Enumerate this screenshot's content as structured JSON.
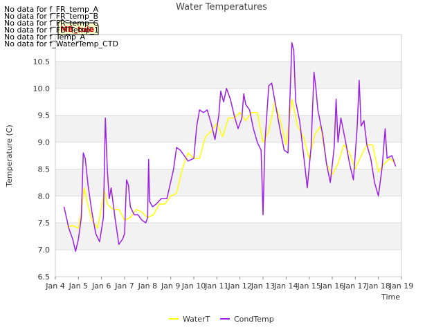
{
  "chart_data": {
    "type": "line",
    "title": "Water Temperatures",
    "xlabel": "Time",
    "ylabel": "Temperature (C)",
    "ylim": [
      6.5,
      11.0
    ],
    "xlim": [
      "2023-01-04",
      "2023-01-19"
    ],
    "x_ticks": [
      "Jan 4",
      "Jan 5",
      "Jan 6",
      "Jan 7",
      "Jan 8",
      "Jan 9",
      "Jan 10",
      "Jan 11",
      "Jan 12",
      "Jan 13",
      "Jan 14",
      "Jan 15",
      "Jan 16",
      "Jan 17",
      "Jan 18",
      "Jan 19"
    ],
    "y_ticks": [
      "6.5",
      "7.0",
      "7.5",
      "8.0",
      "8.5",
      "9.0",
      "9.5",
      "10.0",
      "10.5"
    ],
    "grid": true,
    "background_bands": true,
    "legend_position": "bottom-center",
    "no_data_messages": [
      "No data for f_FR_temp_A",
      "No data for f_FR_temp_B",
      "No data for f_FR_temp_C",
      "No data for f_FD_Temp_1",
      "No data for f_Temp_A",
      "No data for f_WaterTemp_CTD"
    ],
    "tooltip_label": "MB_tule",
    "series": [
      {
        "name": "WaterT",
        "color": "#ffff00",
        "points": [
          [
            "2023-01-04T12:00",
            7.42
          ],
          [
            "2023-01-04T18:00",
            7.45
          ],
          [
            "2023-01-05T00:00",
            7.4
          ],
          [
            "2023-01-05T03:00",
            7.7
          ],
          [
            "2023-01-05T06:00",
            8.15
          ],
          [
            "2023-01-05T09:00",
            7.9
          ],
          [
            "2023-01-05T14:00",
            7.55
          ],
          [
            "2023-01-05T20:00",
            7.4
          ],
          [
            "2023-01-06T00:00",
            7.8
          ],
          [
            "2023-01-06T03:00",
            8.1
          ],
          [
            "2023-01-06T06:00",
            7.85
          ],
          [
            "2023-01-06T12:00",
            7.75
          ],
          [
            "2023-01-06T18:00",
            7.75
          ],
          [
            "2023-01-07T00:00",
            7.55
          ],
          [
            "2023-01-07T06:00",
            7.6
          ],
          [
            "2023-01-07T12:00",
            7.75
          ],
          [
            "2023-01-07T18:00",
            7.7
          ],
          [
            "2023-01-08T00:00",
            7.6
          ],
          [
            "2023-01-08T06:00",
            7.65
          ],
          [
            "2023-01-08T12:00",
            7.85
          ],
          [
            "2023-01-08T18:00",
            7.85
          ],
          [
            "2023-01-09T00:00",
            8.0
          ],
          [
            "2023-01-09T06:00",
            8.05
          ],
          [
            "2023-01-09T12:00",
            8.5
          ],
          [
            "2023-01-09T18:00",
            8.8
          ],
          [
            "2023-01-10T00:00",
            8.7
          ],
          [
            "2023-01-10T06:00",
            8.7
          ],
          [
            "2023-01-10T12:00",
            9.1
          ],
          [
            "2023-01-10T18:00",
            9.2
          ],
          [
            "2023-01-11T00:00",
            9.35
          ],
          [
            "2023-01-11T06:00",
            9.1
          ],
          [
            "2023-01-11T12:00",
            9.45
          ],
          [
            "2023-01-11T18:00",
            9.45
          ],
          [
            "2023-01-12T00:00",
            9.55
          ],
          [
            "2023-01-12T06:00",
            9.4
          ],
          [
            "2023-01-12T12:00",
            9.55
          ],
          [
            "2023-01-12T18:00",
            9.55
          ],
          [
            "2023-01-13T00:00",
            9.0
          ],
          [
            "2023-01-13T06:00",
            9.2
          ],
          [
            "2023-01-13T12:00",
            9.75
          ],
          [
            "2023-01-13T18:00",
            9.4
          ],
          [
            "2023-01-14T00:00",
            8.95
          ],
          [
            "2023-01-14T06:00",
            9.8
          ],
          [
            "2023-01-14T12:00",
            9.3
          ],
          [
            "2023-01-14T18:00",
            9.1
          ],
          [
            "2023-01-15T00:00",
            8.7
          ],
          [
            "2023-01-15T06:00",
            9.15
          ],
          [
            "2023-01-15T12:00",
            9.3
          ],
          [
            "2023-01-15T18:00",
            8.6
          ],
          [
            "2023-01-16T00:00",
            8.4
          ],
          [
            "2023-01-16T06:00",
            8.6
          ],
          [
            "2023-01-16T12:00",
            8.95
          ],
          [
            "2023-01-16T18:00",
            8.8
          ],
          [
            "2023-01-17T00:00",
            8.5
          ],
          [
            "2023-01-17T06:00",
            8.75
          ],
          [
            "2023-01-17T12:00",
            8.95
          ],
          [
            "2023-01-17T18:00",
            8.95
          ],
          [
            "2023-01-18T00:00",
            8.45
          ],
          [
            "2023-01-18T06:00",
            8.6
          ],
          [
            "2023-01-18T12:00",
            8.7
          ],
          [
            "2023-01-18T18:00",
            8.6
          ]
        ]
      },
      {
        "name": "CondTemp",
        "color": "#9b1fe8",
        "points": [
          [
            "2023-01-04T09:00",
            7.8
          ],
          [
            "2023-01-04T14:00",
            7.4
          ],
          [
            "2023-01-04T18:00",
            7.2
          ],
          [
            "2023-01-04T21:00",
            6.97
          ],
          [
            "2023-01-05T00:00",
            7.2
          ],
          [
            "2023-01-05T03:00",
            7.6
          ],
          [
            "2023-01-05T05:00",
            8.8
          ],
          [
            "2023-01-05T07:00",
            8.7
          ],
          [
            "2023-01-05T10:00",
            8.2
          ],
          [
            "2023-01-05T14:00",
            7.7
          ],
          [
            "2023-01-05T18:00",
            7.3
          ],
          [
            "2023-01-05T22:00",
            7.15
          ],
          [
            "2023-01-06T02:00",
            7.6
          ],
          [
            "2023-01-06T04:00",
            9.45
          ],
          [
            "2023-01-06T06:00",
            8.5
          ],
          [
            "2023-01-06T08:00",
            7.95
          ],
          [
            "2023-01-06T10:00",
            8.15
          ],
          [
            "2023-01-06T14:00",
            7.6
          ],
          [
            "2023-01-06T18:00",
            7.1
          ],
          [
            "2023-01-06T22:00",
            7.2
          ],
          [
            "2023-01-07T00:00",
            7.3
          ],
          [
            "2023-01-07T02:00",
            8.3
          ],
          [
            "2023-01-07T04:00",
            8.2
          ],
          [
            "2023-01-07T06:00",
            7.8
          ],
          [
            "2023-01-07T10:00",
            7.65
          ],
          [
            "2023-01-07T14:00",
            7.65
          ],
          [
            "2023-01-07T18:00",
            7.55
          ],
          [
            "2023-01-07T22:00",
            7.5
          ],
          [
            "2023-01-08T00:00",
            7.6
          ],
          [
            "2023-01-08T01:00",
            8.68
          ],
          [
            "2023-01-08T02:00",
            7.9
          ],
          [
            "2023-01-08T05:00",
            7.8
          ],
          [
            "2023-01-08T09:00",
            7.85
          ],
          [
            "2023-01-08T14:00",
            7.95
          ],
          [
            "2023-01-08T20:00",
            7.95
          ],
          [
            "2023-01-09T03:00",
            8.5
          ],
          [
            "2023-01-09T06:00",
            8.9
          ],
          [
            "2023-01-09T10:00",
            8.85
          ],
          [
            "2023-01-09T14:00",
            8.75
          ],
          [
            "2023-01-09T18:00",
            8.65
          ],
          [
            "2023-01-10T00:00",
            8.7
          ],
          [
            "2023-01-10T03:00",
            9.3
          ],
          [
            "2023-01-10T06:00",
            9.6
          ],
          [
            "2023-01-10T10:00",
            9.55
          ],
          [
            "2023-01-10T14:00",
            9.6
          ],
          [
            "2023-01-10T18:00",
            9.35
          ],
          [
            "2023-01-10T22:00",
            9.05
          ],
          [
            "2023-01-11T02:00",
            9.5
          ],
          [
            "2023-01-11T04:00",
            9.95
          ],
          [
            "2023-01-11T07:00",
            9.75
          ],
          [
            "2023-01-11T10:00",
            10.0
          ],
          [
            "2023-01-11T14:00",
            9.8
          ],
          [
            "2023-01-11T18:00",
            9.5
          ],
          [
            "2023-01-11T22:00",
            9.25
          ],
          [
            "2023-01-12T02:00",
            9.45
          ],
          [
            "2023-01-12T04:00",
            9.9
          ],
          [
            "2023-01-12T06:00",
            9.7
          ],
          [
            "2023-01-12T10:00",
            9.6
          ],
          [
            "2023-01-12T14:00",
            9.25
          ],
          [
            "2023-01-12T18:00",
            9.0
          ],
          [
            "2023-01-12T22:00",
            8.85
          ],
          [
            "2023-01-13T00:00",
            7.65
          ],
          [
            "2023-01-13T02:00",
            9.0
          ],
          [
            "2023-01-13T06:00",
            10.05
          ],
          [
            "2023-01-13T09:00",
            10.1
          ],
          [
            "2023-01-13T14:00",
            9.6
          ],
          [
            "2023-01-13T18:00",
            9.2
          ],
          [
            "2023-01-13T22:00",
            8.85
          ],
          [
            "2023-01-14T02:00",
            8.8
          ],
          [
            "2023-01-14T06:00",
            10.85
          ],
          [
            "2023-01-14T08:00",
            10.7
          ],
          [
            "2023-01-14T10:00",
            9.75
          ],
          [
            "2023-01-14T14:00",
            9.4
          ],
          [
            "2023-01-14T18:00",
            8.8
          ],
          [
            "2023-01-14T22:00",
            8.15
          ],
          [
            "2023-01-15T02:00",
            8.9
          ],
          [
            "2023-01-15T05:00",
            10.3
          ],
          [
            "2023-01-15T07:00",
            10.0
          ],
          [
            "2023-01-15T09:00",
            9.6
          ],
          [
            "2023-01-15T14:00",
            9.15
          ],
          [
            "2023-01-15T18:00",
            8.6
          ],
          [
            "2023-01-15T22:00",
            8.25
          ],
          [
            "2023-01-16T02:00",
            8.9
          ],
          [
            "2023-01-16T04:00",
            9.8
          ],
          [
            "2023-01-16T06:00",
            9.0
          ],
          [
            "2023-01-16T09:00",
            9.45
          ],
          [
            "2023-01-16T14:00",
            9.0
          ],
          [
            "2023-01-16T18:00",
            8.6
          ],
          [
            "2023-01-16T22:00",
            8.3
          ],
          [
            "2023-01-17T02:00",
            9.3
          ],
          [
            "2023-01-17T04:00",
            10.15
          ],
          [
            "2023-01-17T06:00",
            9.3
          ],
          [
            "2023-01-17T09:00",
            9.4
          ],
          [
            "2023-01-17T12:00",
            8.95
          ],
          [
            "2023-01-17T16:00",
            8.7
          ],
          [
            "2023-01-17T20:00",
            8.25
          ],
          [
            "2023-01-18T00:00",
            8.0
          ],
          [
            "2023-01-18T04:00",
            8.55
          ],
          [
            "2023-01-18T07:00",
            9.25
          ],
          [
            "2023-01-18T09:00",
            8.7
          ],
          [
            "2023-01-18T14:00",
            8.75
          ],
          [
            "2023-01-18T18:00",
            8.55
          ]
        ]
      }
    ]
  }
}
